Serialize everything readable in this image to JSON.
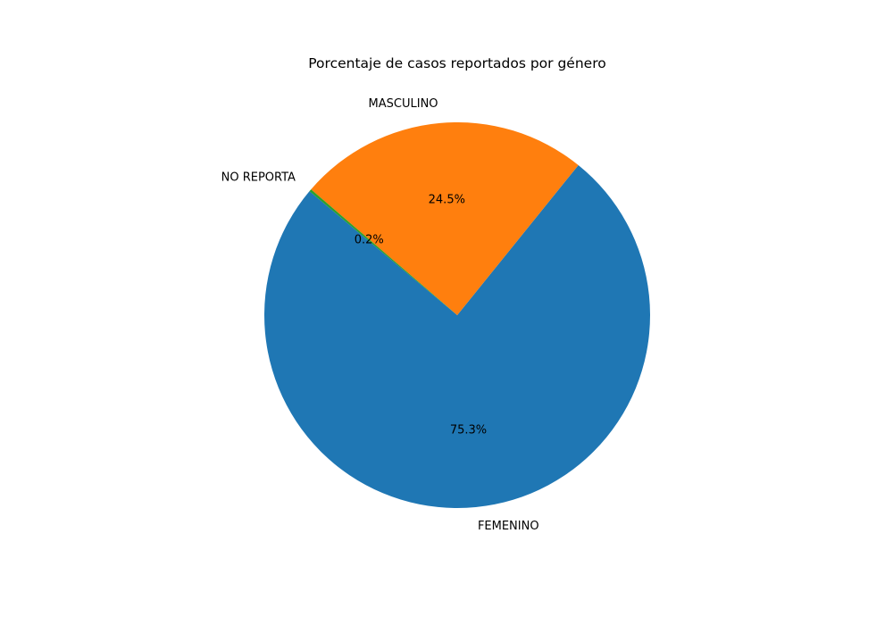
{
  "chart_data": {
    "type": "pie",
    "title": "Porcentaje de casos reportados por género",
    "slices": [
      {
        "label": "FEMENINO",
        "value": 75.3,
        "pct_label": "75.3%",
        "color": "#1f77b4"
      },
      {
        "label": "MASCULINO",
        "value": 24.5,
        "pct_label": "24.5%",
        "color": "#ff7f0e"
      },
      {
        "label": "NO REPORTA",
        "value": 0.2,
        "pct_label": "0.2%",
        "color": "#2ca02c"
      }
    ],
    "start_angle_deg": 140,
    "direction": "counterclockwise",
    "legend": "none"
  }
}
